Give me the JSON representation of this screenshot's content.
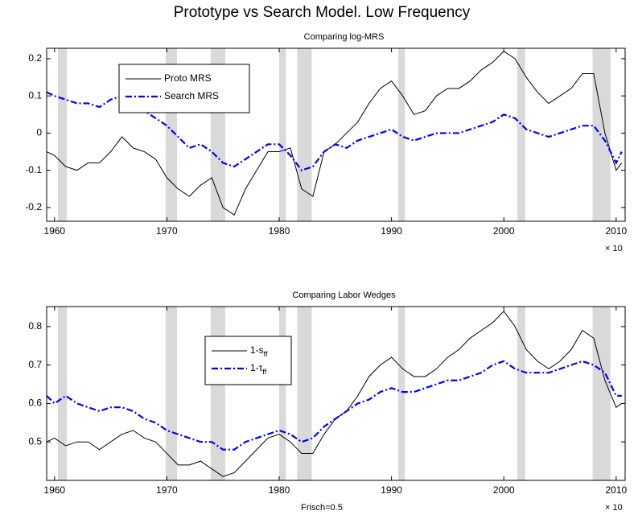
{
  "title": "Prototype vs Search Model. Low Frequency",
  "chart_data": [
    {
      "type": "line",
      "title": "Comparing log-MRS",
      "x_multiplier": "× 10",
      "xlim": [
        1959.3,
        2010.8
      ],
      "ylim": [
        -0.237,
        0.228
      ],
      "xticks": [
        1960,
        1970,
        1980,
        1990,
        2000,
        2010
      ],
      "yticks": [
        -0.2,
        -0.1,
        0,
        0.1,
        0.2
      ],
      "grid": false,
      "legend": "upper left",
      "shaded": [
        [
          1960.3,
          1961.1
        ],
        [
          1969.9,
          1970.9
        ],
        [
          1973.9,
          1975.2
        ],
        [
          1980.0,
          1980.6
        ],
        [
          1981.6,
          1982.9
        ],
        [
          1990.6,
          1991.2
        ],
        [
          2001.2,
          2001.9
        ],
        [
          2007.9,
          2009.5
        ]
      ],
      "shade_color": "#d9d9d9",
      "x": [
        1959.3,
        1960,
        1961,
        1962,
        1963,
        1964,
        1965,
        1966,
        1967,
        1968,
        1969,
        1970,
        1971,
        1972,
        1973,
        1974,
        1975,
        1976,
        1977,
        1978,
        1979,
        1980,
        1981,
        1982,
        1983,
        1984,
        1985,
        1986,
        1987,
        1988,
        1989,
        1990,
        1991,
        1992,
        1993,
        1994,
        1995,
        1996,
        1997,
        1998,
        1999,
        2000,
        2001,
        2002,
        2003,
        2004,
        2005,
        2006,
        2007,
        2008,
        2009,
        2010,
        2010.5
      ],
      "series": [
        {
          "name": "Proto MRS",
          "color": "#000000",
          "style": "solid",
          "values": [
            -0.05,
            -0.06,
            -0.09,
            -0.1,
            -0.08,
            -0.08,
            -0.05,
            -0.01,
            -0.04,
            -0.05,
            -0.07,
            -0.12,
            -0.15,
            -0.17,
            -0.14,
            -0.12,
            -0.2,
            -0.22,
            -0.15,
            -0.1,
            -0.05,
            -0.05,
            -0.04,
            -0.15,
            -0.17,
            -0.05,
            -0.03,
            0.0,
            0.03,
            0.08,
            0.12,
            0.14,
            0.1,
            0.05,
            0.06,
            0.1,
            0.12,
            0.12,
            0.14,
            0.17,
            0.19,
            0.22,
            0.2,
            0.15,
            0.11,
            0.08,
            0.1,
            0.12,
            0.16,
            0.16,
            0.0,
            -0.1,
            -0.08
          ]
        },
        {
          "name": "Search MRS",
          "color": "#0000ff",
          "style": "dashdot",
          "values": [
            0.11,
            0.1,
            0.09,
            0.08,
            0.08,
            0.07,
            0.09,
            0.1,
            0.09,
            0.06,
            0.04,
            0.02,
            -0.01,
            -0.04,
            -0.03,
            -0.05,
            -0.08,
            -0.09,
            -0.07,
            -0.05,
            -0.03,
            -0.03,
            -0.06,
            -0.1,
            -0.09,
            -0.05,
            -0.03,
            -0.04,
            -0.02,
            -0.01,
            0.0,
            0.01,
            -0.01,
            -0.02,
            -0.01,
            0.0,
            0.0,
            0.0,
            0.01,
            0.02,
            0.03,
            0.05,
            0.04,
            0.01,
            0.0,
            -0.01,
            0.0,
            0.01,
            0.02,
            0.02,
            -0.02,
            -0.08,
            -0.05
          ]
        }
      ]
    },
    {
      "type": "line",
      "title": "Comparing Labor Wedges",
      "xlabel": "Frisch=0.5",
      "x_multiplier": "× 10",
      "xlim": [
        1959.3,
        2010.8
      ],
      "ylim": [
        0.4,
        0.852
      ],
      "xticks": [
        1960,
        1970,
        1980,
        1990,
        2000,
        2010
      ],
      "yticks": [
        0.5,
        0.6,
        0.7,
        0.8
      ],
      "grid": false,
      "legend": "upper center",
      "shaded": [
        [
          1960.3,
          1961.1
        ],
        [
          1969.9,
          1970.9
        ],
        [
          1973.9,
          1975.2
        ],
        [
          1980.0,
          1980.6
        ],
        [
          1981.6,
          1982.9
        ],
        [
          1990.6,
          1991.2
        ],
        [
          2001.2,
          2001.9
        ],
        [
          2007.9,
          2009.5
        ]
      ],
      "shade_color": "#d9d9d9",
      "x": [
        1959.3,
        1960,
        1961,
        1962,
        1963,
        1964,
        1965,
        1966,
        1967,
        1968,
        1969,
        1970,
        1971,
        1972,
        1973,
        1974,
        1975,
        1976,
        1977,
        1978,
        1979,
        1980,
        1981,
        1982,
        1983,
        1984,
        1985,
        1986,
        1987,
        1988,
        1989,
        1990,
        1991,
        1992,
        1993,
        1994,
        1995,
        1996,
        1997,
        1998,
        1999,
        2000,
        2001,
        2002,
        2003,
        2004,
        2005,
        2006,
        2007,
        2008,
        2009,
        2010,
        2010.5
      ],
      "series": [
        {
          "name": "1-s_ff",
          "color": "#000000",
          "style": "solid",
          "values": [
            0.5,
            0.51,
            0.49,
            0.5,
            0.5,
            0.48,
            0.5,
            0.52,
            0.53,
            0.51,
            0.5,
            0.47,
            0.44,
            0.44,
            0.45,
            0.43,
            0.41,
            0.42,
            0.45,
            0.48,
            0.51,
            0.52,
            0.5,
            0.47,
            0.47,
            0.52,
            0.56,
            0.58,
            0.62,
            0.67,
            0.7,
            0.72,
            0.69,
            0.67,
            0.67,
            0.69,
            0.72,
            0.74,
            0.77,
            0.79,
            0.81,
            0.84,
            0.8,
            0.74,
            0.71,
            0.69,
            0.71,
            0.74,
            0.79,
            0.77,
            0.66,
            0.59,
            0.6
          ]
        },
        {
          "name": "1-τ_ff",
          "color": "#0000ff",
          "style": "dashdot",
          "values": [
            0.62,
            0.6,
            0.62,
            0.6,
            0.59,
            0.58,
            0.59,
            0.59,
            0.58,
            0.56,
            0.55,
            0.53,
            0.52,
            0.51,
            0.5,
            0.5,
            0.48,
            0.48,
            0.5,
            0.51,
            0.52,
            0.53,
            0.52,
            0.5,
            0.51,
            0.54,
            0.56,
            0.58,
            0.6,
            0.61,
            0.63,
            0.64,
            0.63,
            0.63,
            0.64,
            0.65,
            0.66,
            0.66,
            0.67,
            0.68,
            0.7,
            0.71,
            0.69,
            0.68,
            0.68,
            0.68,
            0.69,
            0.7,
            0.71,
            0.7,
            0.68,
            0.62,
            0.62
          ]
        }
      ]
    }
  ]
}
